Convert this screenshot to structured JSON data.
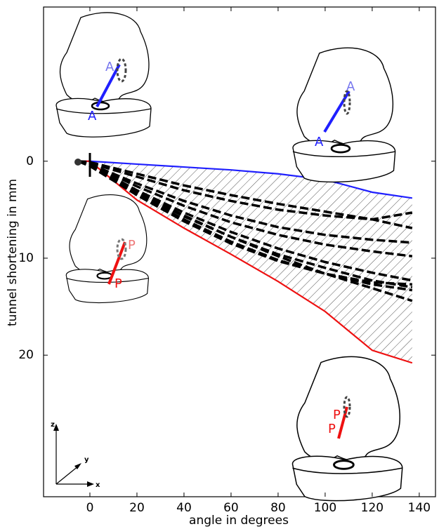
{
  "chart_data": {
    "type": "line",
    "x_label": "angle in degrees",
    "y_label": "tunnel shortening in mm",
    "xlim": [
      -19.7,
      146.9
    ],
    "ylim": [
      -15.9,
      34.6
    ],
    "y_inverted": true,
    "xticks": [
      0,
      20,
      40,
      60,
      80,
      100,
      120,
      140
    ],
    "yticks": [
      0,
      10,
      20
    ],
    "grid": false,
    "band_between_series": [
      0,
      1
    ],
    "x": [
      -5,
      0,
      20,
      40,
      60,
      80,
      100,
      120,
      137
    ],
    "series": [
      {
        "color": "#1f1fff",
        "linestyle": "solid",
        "values": [
          0,
          0,
          0.3,
          0.6,
          0.9,
          1.3,
          1.9,
          3.2,
          3.8
        ]
      },
      {
        "color": "#ee1111",
        "linestyle": "solid",
        "values": [
          0,
          0,
          4.0,
          6.9,
          9.6,
          12.4,
          15.5,
          19.5,
          20.8
        ]
      },
      {
        "color": "#000000",
        "linestyle": "dashed",
        "values": [
          0,
          0.1,
          1.3,
          2.5,
          3.5,
          4.4,
          5.2,
          6.0,
          6.9
        ]
      },
      {
        "color": "#000000",
        "linestyle": "dashed",
        "values": [
          0,
          0.2,
          1.6,
          3.0,
          4.1,
          5.0,
          5.6,
          6.0,
          5.3
        ]
      },
      {
        "color": "#000000",
        "linestyle": "dashed",
        "values": [
          0,
          0.3,
          2.3,
          4.1,
          5.6,
          6.8,
          7.6,
          8.1,
          8.4
        ]
      },
      {
        "color": "#000000",
        "linestyle": "dashed",
        "values": [
          0,
          0.3,
          2.6,
          4.6,
          6.3,
          7.6,
          8.6,
          9.3,
          9.8
        ]
      },
      {
        "color": "#000000",
        "linestyle": "dashed",
        "values": [
          0,
          0.4,
          3.0,
          5.3,
          7.3,
          9.0,
          10.4,
          11.5,
          12.3
        ]
      },
      {
        "color": "#000000",
        "linestyle": "dashed",
        "values": [
          0,
          0.4,
          3.2,
          5.7,
          7.8,
          9.6,
          11.0,
          12.3,
          13.0
        ]
      },
      {
        "color": "#000000",
        "linestyle": "dashed",
        "values": [
          0,
          0.5,
          3.4,
          6.0,
          8.3,
          10.2,
          11.6,
          12.7,
          13.3
        ]
      },
      {
        "color": "#000000",
        "linestyle": "dashed",
        "values": [
          0,
          0.4,
          3.1,
          5.6,
          7.8,
          9.8,
          11.6,
          13.1,
          14.4
        ]
      },
      {
        "color": "#000000",
        "linestyle": "dashed",
        "values": [
          0,
          0.5,
          3.5,
          6.2,
          8.5,
          10.3,
          11.6,
          12.5,
          12.7
        ]
      }
    ],
    "annotations": [
      "A",
      "A",
      "A",
      "A",
      "P",
      "P",
      "P",
      "P"
    ],
    "orientation_labels": [
      "z",
      "y",
      "x"
    ]
  }
}
